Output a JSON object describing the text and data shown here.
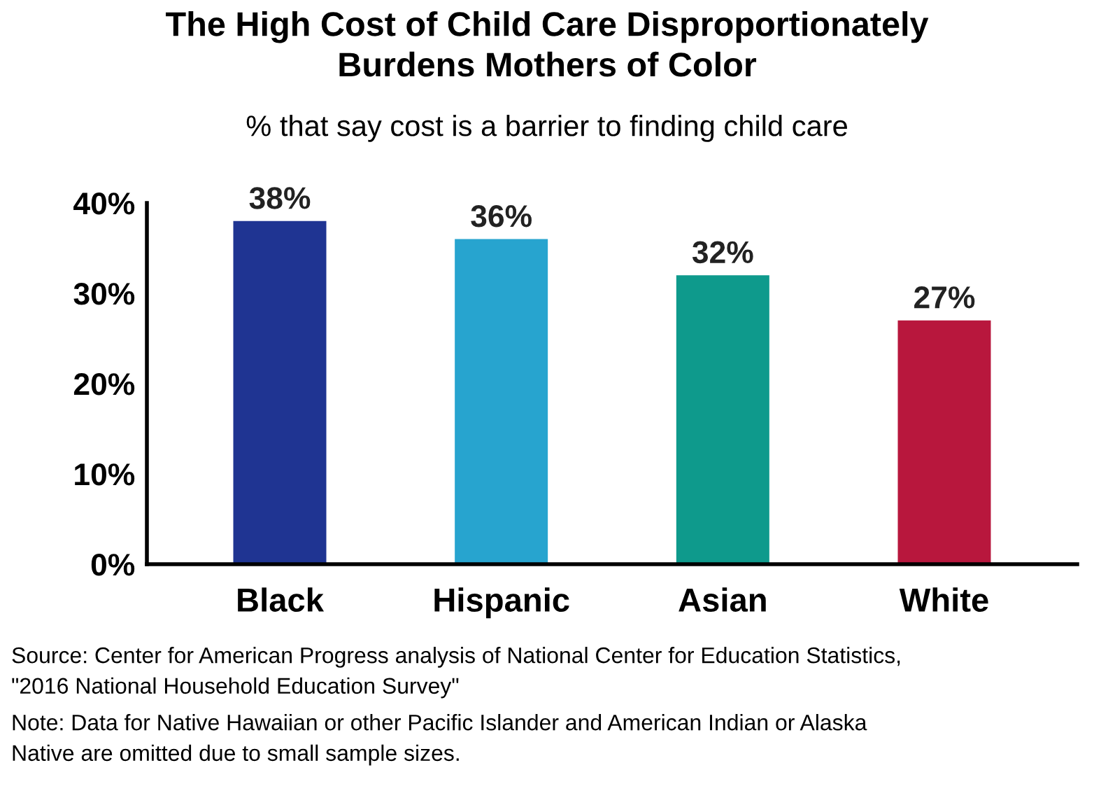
{
  "chart_data": {
    "type": "bar",
    "title": "The High Cost of Child Care Disproportionately\nBurdens Mothers of Color",
    "subtitle": "% that say cost is a barrier to finding child care",
    "categories": [
      "Black",
      "Hispanic",
      "Asian",
      "White"
    ],
    "values": [
      38,
      36,
      32,
      27
    ],
    "colors": [
      "#1f3492",
      "#27a4cf",
      "#0e9a8c",
      "#b8173d"
    ],
    "value_labels": [
      "38%",
      "36%",
      "32%",
      "27%"
    ],
    "ylim": [
      0,
      40
    ],
    "yticks": [
      {
        "value": 0,
        "label": "0%"
      },
      {
        "value": 10,
        "label": "10%"
      },
      {
        "value": 20,
        "label": "20%"
      },
      {
        "value": 30,
        "label": "30%"
      },
      {
        "value": 40,
        "label": "40%"
      }
    ],
    "grid": false,
    "annotations": [
      "Source: Center for American Progress analysis of National Center for Education Statistics,\n\"2016 National Household Education Survey\"",
      "Note: Data for Native Hawaiian or other Pacific Islander and American Indian or Alaska\nNative are omitted due to small sample sizes."
    ]
  }
}
